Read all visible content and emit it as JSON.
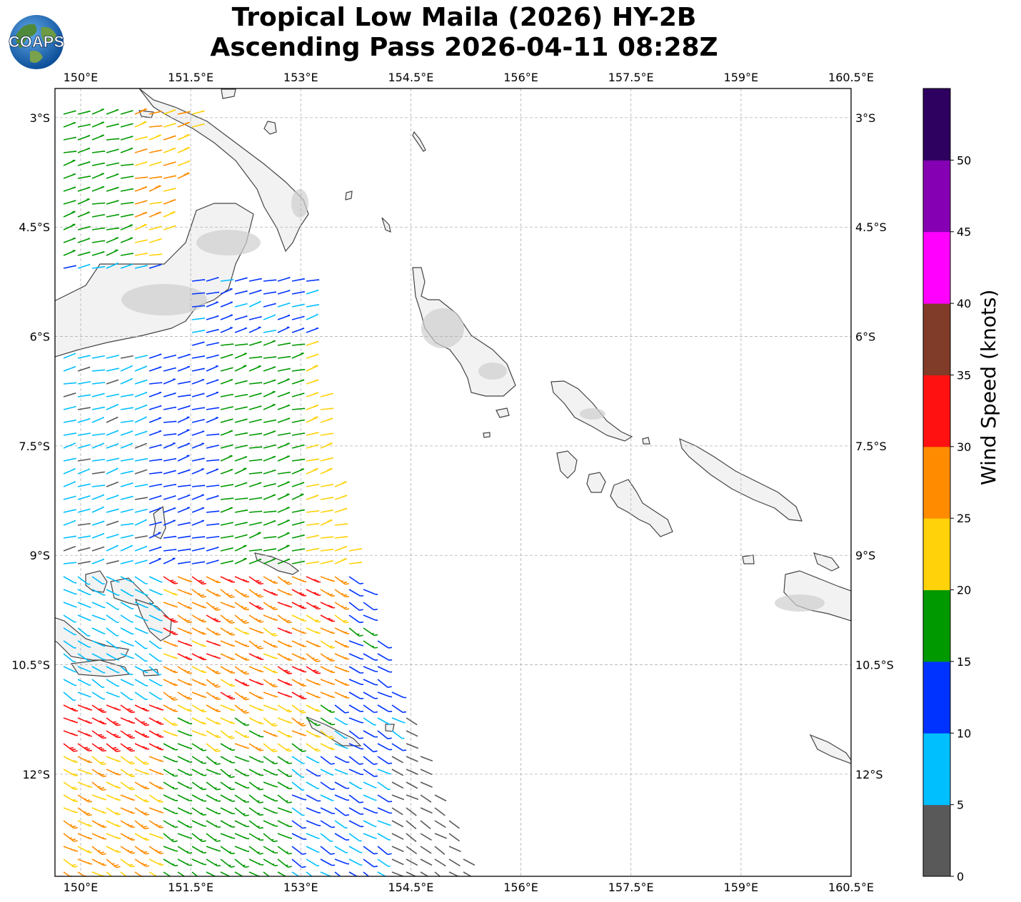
{
  "title": {
    "line1": "Tropical Low Maila (2026) HY-2B",
    "line2": "Ascending Pass 2026-04-11 08:28Z"
  },
  "logo": {
    "text": "COAPS",
    "icon": "globe-logo-icon"
  },
  "axes": {
    "lon_labels": [
      "150°E",
      "151.5°E",
      "153°E",
      "154.5°E",
      "156°E",
      "157.5°E",
      "159°E",
      "160.5°E"
    ],
    "lon_values": [
      150,
      151.5,
      153,
      154.5,
      156,
      157.5,
      159,
      160.5
    ],
    "lat_labels": [
      "3°S",
      "4.5°S",
      "6°S",
      "7.5°S",
      "9°S",
      "10.5°S",
      "12°S"
    ],
    "lat_values": [
      3,
      4.5,
      6,
      7.5,
      9,
      10.5,
      12
    ],
    "lon_range": [
      149.65,
      160.5
    ],
    "lat_range": [
      2.6,
      13.4
    ]
  },
  "colorbar": {
    "label": "Wind Speed (knots)",
    "ticks": [
      "0",
      "5",
      "10",
      "15",
      "20",
      "25",
      "30",
      "35",
      "40",
      "45",
      "50"
    ],
    "colors": [
      "#595959",
      "#00bfff",
      "#0033ff",
      "#009900",
      "#ffd20a",
      "#ff8c00",
      "#ff1111",
      "#803c28",
      "#ff00ff",
      "#8600b3",
      "#2e0060"
    ]
  },
  "colors": {
    "land": "#f2f2f2",
    "coast": "#444444",
    "grid": "#b0b0b0"
  }
}
